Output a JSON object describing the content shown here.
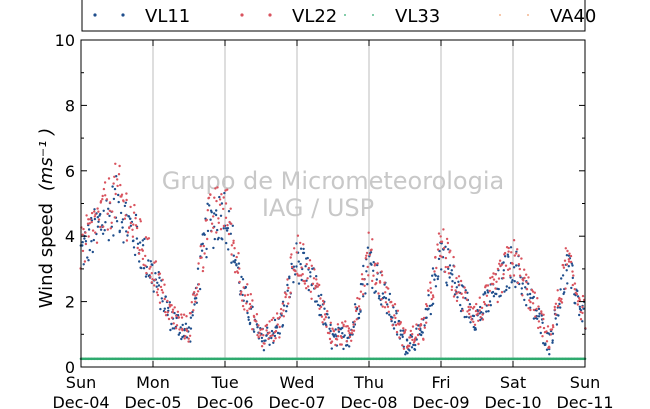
{
  "chart_data": {
    "type": "scatter",
    "ylabel": "Wind speed",
    "ylabel_unit": "(ms⁻¹ )",
    "ylim": [
      0,
      10
    ],
    "yticks": [
      "0",
      "2",
      "4",
      "6",
      "8",
      "10"
    ],
    "xlim": [
      "Dec-04 00:00",
      "Dec-11 00:00"
    ],
    "xticks": [
      {
        "day": "Sun",
        "date": "Dec-04"
      },
      {
        "day": "Mon",
        "date": "Dec-05"
      },
      {
        "day": "Tue",
        "date": "Dec-06"
      },
      {
        "day": "Wed",
        "date": "Dec-07"
      },
      {
        "day": "Thu",
        "date": "Dec-08"
      },
      {
        "day": "Fri",
        "date": "Dec-09"
      },
      {
        "day": "Sat",
        "date": "Dec-10"
      },
      {
        "day": "Sun",
        "date": "Dec-11"
      }
    ],
    "grid": "vertical",
    "legend_position": "top",
    "watermark": [
      "Grupo de Micrometeorologia",
      "IAG / USP"
    ],
    "series": [
      {
        "name": "VL11",
        "color": "#1f4e8c"
      },
      {
        "name": "VL22",
        "color": "#d9535e"
      },
      {
        "name": "VL33",
        "color": "#2eaa6e"
      },
      {
        "name": "VA40",
        "color": "#f0a070"
      }
    ],
    "approx_daily_profile": {
      "x_hours": [
        0,
        6,
        12,
        18,
        24,
        30,
        36,
        42,
        48,
        54,
        60,
        66,
        72,
        78,
        84,
        90,
        96,
        102,
        108,
        114,
        120,
        126,
        132,
        138,
        144,
        150,
        156,
        162,
        168
      ],
      "VL11": [
        3.5,
        4.3,
        5.0,
        4.0,
        2.8,
        1.5,
        1.0,
        4.2,
        4.8,
        2.2,
        0.8,
        1.2,
        3.3,
        2.4,
        0.8,
        1.0,
        3.3,
        2.0,
        0.7,
        1.0,
        3.6,
        2.2,
        1.5,
        2.3,
        3.2,
        2.0,
        0.7,
        3.0,
        1.5
      ],
      "VL22": [
        3.6,
        4.5,
        5.4,
        4.2,
        3.0,
        1.6,
        1.1,
        4.4,
        5.0,
        2.4,
        0.9,
        1.3,
        3.5,
        2.5,
        0.9,
        1.1,
        3.5,
        2.1,
        0.8,
        1.1,
        3.8,
        2.3,
        1.6,
        2.4,
        3.4,
        2.1,
        0.8,
        3.2,
        1.6
      ],
      "VL33": [
        0.25,
        0.25,
        0.25,
        0.25,
        0.25,
        0.25,
        0.25,
        0.25,
        0.25,
        0.25,
        0.25,
        0.25,
        0.25,
        0.25,
        0.25,
        0.25,
        0.25,
        0.25,
        0.25,
        0.25,
        0.25,
        0.25,
        0.25,
        0.25,
        0.25,
        0.25,
        0.25,
        0.25,
        0.25
      ]
    }
  }
}
